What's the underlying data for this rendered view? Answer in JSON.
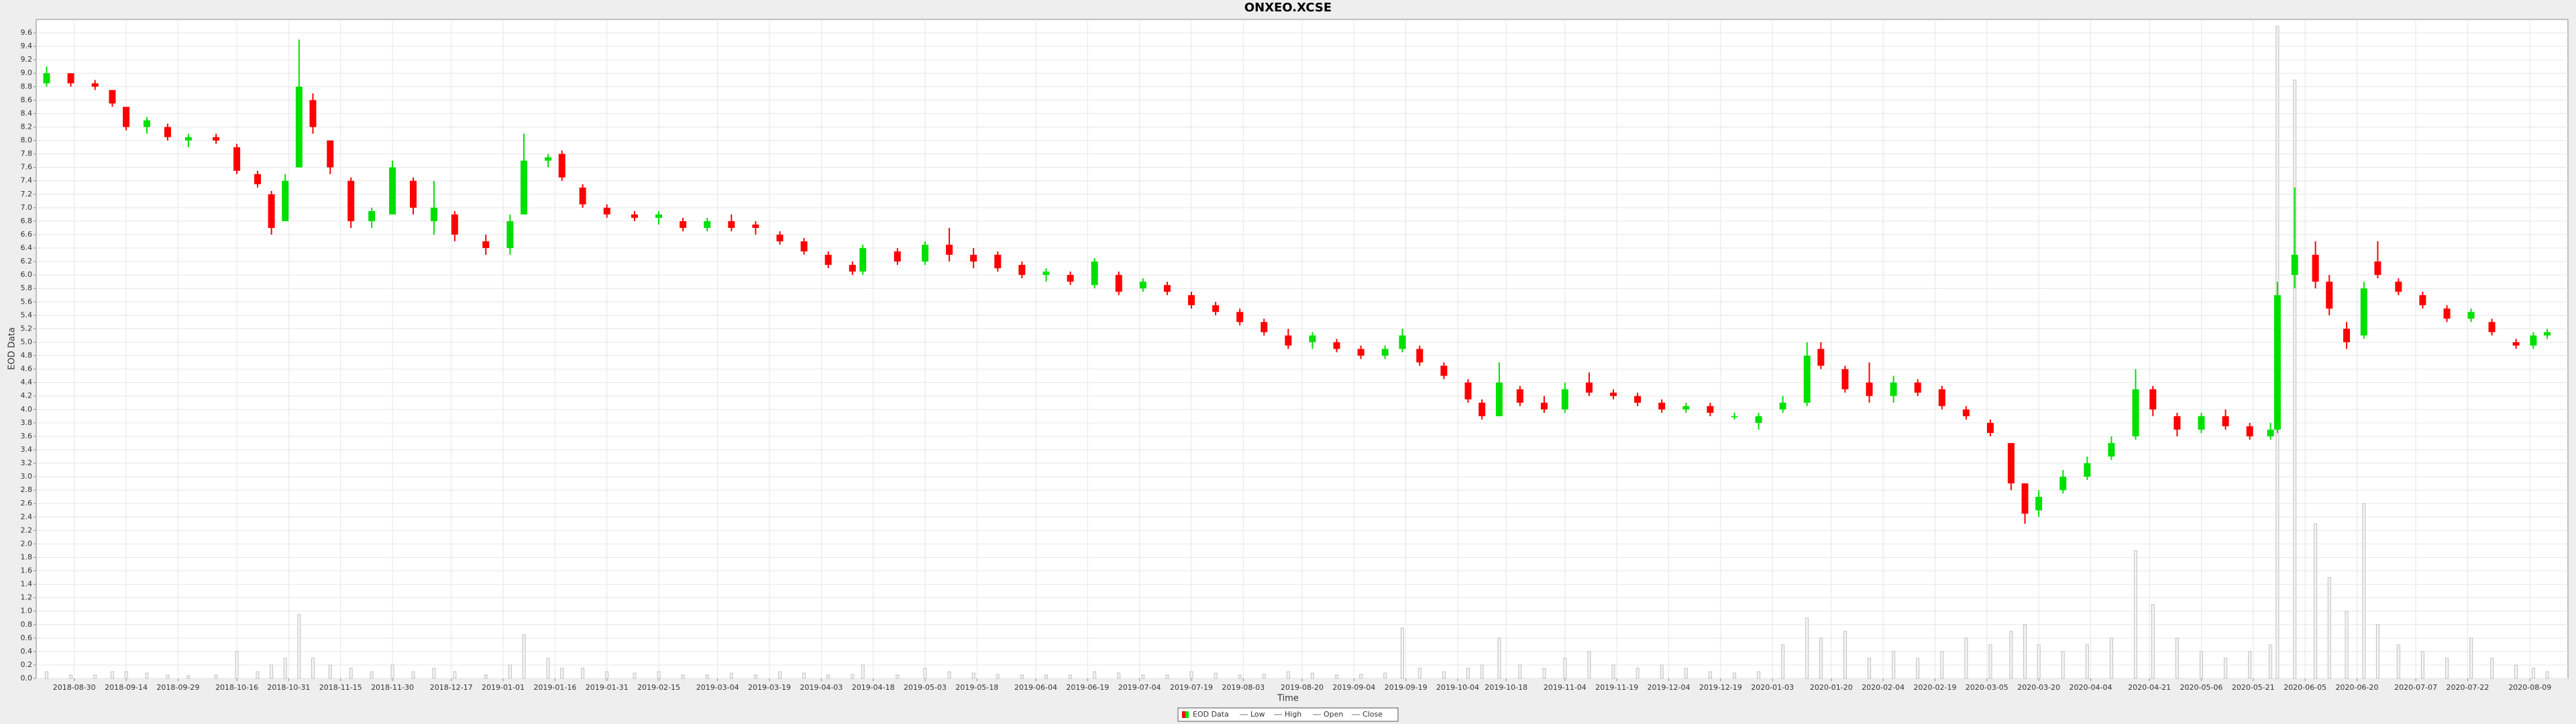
{
  "chart_data": {
    "type": "candlestick",
    "title": "ONXEO.XCSE",
    "xlabel": "Time",
    "ylabel": "EOD Data",
    "up_color": "#00e000",
    "down_color": "#ff0000",
    "volume_color": "#c0c0c0",
    "grid": true,
    "legend": [
      "EOD Data",
      "Low",
      "High",
      "Open",
      "Close"
    ],
    "legend_position": "bottom",
    "xlim": [
      "2018-08-19",
      "2020-08-20"
    ],
    "xticks": [
      "2018-08-30",
      "2018-09-14",
      "2018-09-29",
      "2018-10-16",
      "2018-10-31",
      "2018-11-15",
      "2018-11-30",
      "2018-12-17",
      "2019-01-01",
      "2019-01-16",
      "2019-01-31",
      "2019-02-15",
      "2019-03-04",
      "2019-03-19",
      "2019-04-03",
      "2019-04-18",
      "2019-05-03",
      "2019-05-18",
      "2019-06-04",
      "2019-06-19",
      "2019-07-04",
      "2019-07-19",
      "2019-08-03",
      "2019-08-20",
      "2019-09-04",
      "2019-09-19",
      "2019-10-04",
      "2019-10-18",
      "2019-11-04",
      "2019-11-19",
      "2019-12-04",
      "2019-12-19",
      "2020-01-03",
      "2020-01-20",
      "2020-02-04",
      "2020-02-19",
      "2020-03-05",
      "2020-03-20",
      "2020-04-04",
      "2020-04-21",
      "2020-05-06",
      "2020-05-21",
      "2020-06-05",
      "2020-06-20",
      "2020-07-07",
      "2020-07-22",
      "2020-08-09"
    ],
    "ylim": [
      0,
      9.8
    ],
    "yticks": [
      {
        "value": 0,
        "label": "0.0"
      },
      0.2,
      0.4,
      0.6,
      0.8,
      {
        "value": 1,
        "label": "1.0"
      },
      1.2,
      1.4,
      1.6,
      1.8,
      {
        "value": 2,
        "label": "2.0"
      },
      2.2,
      2.4,
      2.6,
      2.8,
      {
        "value": 3,
        "label": "3.0"
      },
      3.2,
      3.4,
      3.6,
      3.8,
      {
        "value": 4,
        "label": "4.0"
      },
      4.2,
      4.4,
      4.6,
      4.8,
      {
        "value": 5,
        "label": "5.0"
      },
      5.2,
      5.4,
      5.6,
      5.8,
      {
        "value": 6,
        "label": "6.0"
      },
      6.2,
      6.4,
      6.6,
      6.8,
      {
        "value": 7,
        "label": "7.0"
      },
      7.2,
      7.4,
      7.6,
      7.8,
      {
        "value": 8,
        "label": "8.0"
      },
      8.2,
      8.4,
      8.6,
      8.8,
      {
        "value": 9,
        "label": "9.0"
      },
      9.2,
      9.4,
      9.6
    ],
    "x": [
      "2018-08-22",
      "2018-08-29",
      "2018-09-05",
      "2018-09-10",
      "2018-09-14",
      "2018-09-20",
      "2018-09-26",
      "2018-10-02",
      "2018-10-10",
      "2018-10-16",
      "2018-10-22",
      "2018-10-26",
      "2018-10-30",
      "2018-11-03",
      "2018-11-07",
      "2018-11-12",
      "2018-11-18",
      "2018-11-24",
      "2018-11-30",
      "2018-12-06",
      "2018-12-12",
      "2018-12-18",
      "2018-12-27",
      "2019-01-03",
      "2019-01-07",
      "2019-01-14",
      "2019-01-18",
      "2019-01-24",
      "2019-01-31",
      "2019-02-08",
      "2019-02-15",
      "2019-02-22",
      "2019-03-01",
      "2019-03-08",
      "2019-03-15",
      "2019-03-22",
      "2019-03-29",
      "2019-04-05",
      "2019-04-12",
      "2019-04-15",
      "2019-04-25",
      "2019-05-03",
      "2019-05-10",
      "2019-05-17",
      "2019-05-24",
      "2019-05-31",
      "2019-06-07",
      "2019-06-14",
      "2019-06-21",
      "2019-06-28",
      "2019-07-05",
      "2019-07-12",
      "2019-07-19",
      "2019-07-26",
      "2019-08-02",
      "2019-08-09",
      "2019-08-16",
      "2019-08-23",
      "2019-08-30",
      "2019-09-06",
      "2019-09-13",
      "2019-09-18",
      "2019-09-23",
      "2019-09-30",
      "2019-10-07",
      "2019-10-11",
      "2019-10-16",
      "2019-10-22",
      "2019-10-29",
      "2019-11-04",
      "2019-11-11",
      "2019-11-18",
      "2019-11-25",
      "2019-12-02",
      "2019-12-09",
      "2019-12-16",
      "2019-12-23",
      "2019-12-30",
      "2020-01-06",
      "2020-01-13",
      "2020-01-17",
      "2020-01-24",
      "2020-01-31",
      "2020-02-07",
      "2020-02-14",
      "2020-02-21",
      "2020-02-28",
      "2020-03-06",
      "2020-03-12",
      "2020-03-16",
      "2020-03-20",
      "2020-03-27",
      "2020-04-03",
      "2020-04-10",
      "2020-04-17",
      "2020-04-22",
      "2020-04-29",
      "2020-05-06",
      "2020-05-13",
      "2020-05-20",
      "2020-05-26",
      "2020-05-28",
      "2020-06-02",
      "2020-06-08",
      "2020-06-12",
      "2020-06-17",
      "2020-06-22",
      "2020-06-26",
      "2020-07-02",
      "2020-07-09",
      "2020-07-16",
      "2020-07-23",
      "2020-07-29",
      "2020-08-05",
      "2020-08-10",
      "2020-08-14"
    ],
    "open": [
      8.85,
      9.0,
      8.85,
      8.75,
      8.5,
      8.2,
      8.2,
      8.0,
      8.05,
      7.9,
      7.5,
      7.2,
      6.8,
      7.6,
      8.6,
      8.0,
      7.4,
      6.8,
      6.9,
      7.4,
      6.8,
      6.9,
      6.5,
      6.4,
      6.9,
      7.7,
      7.8,
      7.3,
      7.0,
      6.9,
      6.85,
      6.8,
      6.7,
      6.8,
      6.75,
      6.6,
      6.5,
      6.3,
      6.15,
      6.05,
      6.35,
      6.2,
      6.45,
      6.3,
      6.3,
      6.15,
      6.0,
      6.0,
      5.85,
      6.0,
      5.8,
      5.85,
      5.7,
      5.55,
      5.45,
      5.3,
      5.1,
      5.0,
      5.0,
      4.9,
      4.8,
      4.9,
      4.9,
      4.65,
      4.4,
      4.1,
      3.9,
      4.3,
      4.1,
      4.0,
      4.4,
      4.25,
      4.2,
      4.1,
      4.0,
      4.05,
      3.9,
      3.8,
      4.0,
      4.1,
      4.9,
      4.6,
      4.4,
      4.2,
      4.4,
      4.3,
      4.0,
      3.8,
      3.5,
      2.9,
      2.5,
      2.8,
      3.0,
      3.3,
      3.6,
      4.3,
      3.9,
      3.7,
      3.9,
      3.75,
      3.6,
      3.7,
      6.0,
      6.3,
      5.9,
      5.2,
      5.1,
      6.2,
      5.9,
      5.7,
      5.5,
      5.35,
      5.3,
      5.0,
      4.95,
      5.1
    ],
    "high": [
      9.1,
      9.0,
      8.9,
      8.75,
      8.5,
      8.35,
      8.25,
      8.1,
      8.1,
      7.95,
      7.55,
      7.25,
      7.5,
      9.5,
      8.7,
      8.0,
      7.45,
      7.0,
      7.7,
      7.45,
      7.4,
      6.95,
      6.6,
      6.9,
      8.1,
      7.8,
      7.85,
      7.35,
      7.05,
      6.95,
      6.95,
      6.85,
      6.85,
      6.9,
      6.8,
      6.65,
      6.55,
      6.35,
      6.2,
      6.45,
      6.4,
      6.5,
      6.7,
      6.4,
      6.35,
      6.2,
      6.1,
      6.05,
      6.25,
      6.05,
      5.95,
      5.9,
      5.75,
      5.6,
      5.5,
      5.35,
      5.2,
      5.15,
      5.05,
      4.95,
      4.95,
      5.2,
      4.95,
      4.7,
      4.45,
      4.15,
      4.7,
      4.35,
      4.2,
      4.4,
      4.55,
      4.3,
      4.25,
      4.15,
      4.1,
      4.1,
      3.95,
      3.95,
      4.2,
      5.0,
      5.0,
      4.65,
      4.7,
      4.5,
      4.45,
      4.35,
      4.05,
      3.85,
      3.5,
      2.9,
      2.8,
      3.1,
      3.3,
      3.6,
      4.6,
      4.35,
      3.95,
      3.95,
      4.0,
      3.8,
      3.8,
      5.9,
      7.3,
      6.5,
      6.0,
      5.3,
      5.9,
      6.5,
      5.95,
      5.75,
      5.55,
      5.5,
      5.35,
      5.05,
      5.15,
      5.2
    ],
    "low": [
      8.8,
      8.8,
      8.75,
      8.5,
      8.15,
      8.1,
      8.0,
      7.9,
      7.95,
      7.5,
      7.3,
      6.6,
      6.8,
      7.6,
      8.1,
      7.5,
      6.7,
      6.7,
      6.9,
      6.9,
      6.6,
      6.5,
      6.3,
      6.3,
      6.9,
      7.6,
      7.4,
      7.0,
      6.85,
      6.8,
      6.75,
      6.65,
      6.65,
      6.65,
      6.6,
      6.45,
      6.3,
      6.1,
      6.0,
      6.0,
      6.15,
      6.15,
      6.2,
      6.1,
      6.05,
      5.95,
      5.9,
      5.85,
      5.8,
      5.7,
      5.75,
      5.7,
      5.5,
      5.4,
      5.25,
      5.1,
      4.9,
      4.9,
      4.85,
      4.75,
      4.75,
      4.85,
      4.65,
      4.45,
      4.1,
      3.85,
      3.9,
      4.05,
      3.95,
      3.95,
      4.2,
      4.15,
      4.05,
      3.95,
      3.95,
      3.9,
      3.85,
      3.7,
      3.95,
      4.05,
      4.6,
      4.25,
      4.1,
      4.1,
      4.2,
      4.0,
      3.85,
      3.6,
      2.8,
      2.3,
      2.4,
      2.75,
      2.95,
      3.25,
      3.55,
      3.9,
      3.6,
      3.65,
      3.7,
      3.55,
      3.55,
      3.65,
      5.8,
      5.8,
      5.4,
      4.9,
      5.05,
      5.95,
      5.7,
      5.5,
      5.3,
      5.3,
      5.1,
      4.9,
      4.9,
      5.05
    ],
    "close": [
      9.0,
      8.85,
      8.8,
      8.55,
      8.2,
      8.3,
      8.05,
      8.05,
      8.0,
      7.55,
      7.35,
      6.7,
      7.4,
      8.8,
      8.2,
      7.6,
      6.8,
      6.95,
      7.6,
      7.0,
      7.0,
      6.6,
      6.4,
      6.8,
      7.7,
      7.75,
      7.45,
      7.05,
      6.9,
      6.85,
      6.9,
      6.7,
      6.8,
      6.7,
      6.7,
      6.5,
      6.35,
      6.15,
      6.05,
      6.4,
      6.2,
      6.45,
      6.3,
      6.2,
      6.1,
      6.0,
      6.05,
      5.9,
      6.2,
      5.75,
      5.9,
      5.75,
      5.55,
      5.45,
      5.3,
      5.15,
      4.95,
      5.1,
      4.9,
      4.8,
      4.9,
      5.1,
      4.7,
      4.5,
      4.15,
      3.9,
      4.4,
      4.1,
      4.0,
      4.3,
      4.25,
      4.2,
      4.1,
      4.0,
      4.05,
      3.95,
      3.9,
      3.9,
      4.1,
      4.8,
      4.65,
      4.3,
      4.2,
      4.4,
      4.25,
      4.05,
      3.9,
      3.65,
      2.9,
      2.45,
      2.7,
      3.0,
      3.2,
      3.5,
      4.3,
      4.0,
      3.7,
      3.9,
      3.75,
      3.6,
      3.7,
      5.7,
      6.3,
      5.9,
      5.5,
      5.0,
      5.8,
      6.0,
      5.75,
      5.55,
      5.35,
      5.45,
      5.15,
      4.95,
      5.1,
      5.15
    ],
    "volume": [
      0.1,
      0.05,
      0.05,
      0.1,
      0.1,
      0.08,
      0.05,
      0.04,
      0.05,
      0.4,
      0.1,
      0.2,
      0.3,
      0.95,
      0.3,
      0.2,
      0.15,
      0.1,
      0.2,
      0.1,
      0.15,
      0.1,
      0.05,
      0.2,
      0.65,
      0.3,
      0.15,
      0.15,
      0.1,
      0.08,
      0.1,
      0.05,
      0.05,
      0.08,
      0.05,
      0.1,
      0.08,
      0.05,
      0.06,
      0.2,
      0.05,
      0.15,
      0.1,
      0.08,
      0.06,
      0.05,
      0.05,
      0.05,
      0.1,
      0.08,
      0.05,
      0.05,
      0.1,
      0.08,
      0.05,
      0.06,
      0.1,
      0.08,
      0.05,
      0.06,
      0.08,
      0.75,
      0.15,
      0.1,
      0.15,
      0.2,
      0.6,
      0.2,
      0.15,
      0.3,
      0.4,
      0.2,
      0.15,
      0.2,
      0.15,
      0.1,
      0.08,
      0.1,
      0.5,
      0.9,
      0.6,
      0.7,
      0.3,
      0.4,
      0.3,
      0.4,
      0.6,
      0.5,
      0.7,
      0.8,
      0.5,
      0.4,
      0.5,
      0.6,
      1.9,
      1.1,
      0.6,
      0.4,
      0.3,
      0.4,
      0.5,
      9.7,
      8.9,
      2.3,
      1.5,
      1.0,
      2.6,
      0.8,
      0.5,
      0.4,
      0.3,
      0.6,
      0.3,
      0.2,
      0.15,
      0.1
    ]
  }
}
